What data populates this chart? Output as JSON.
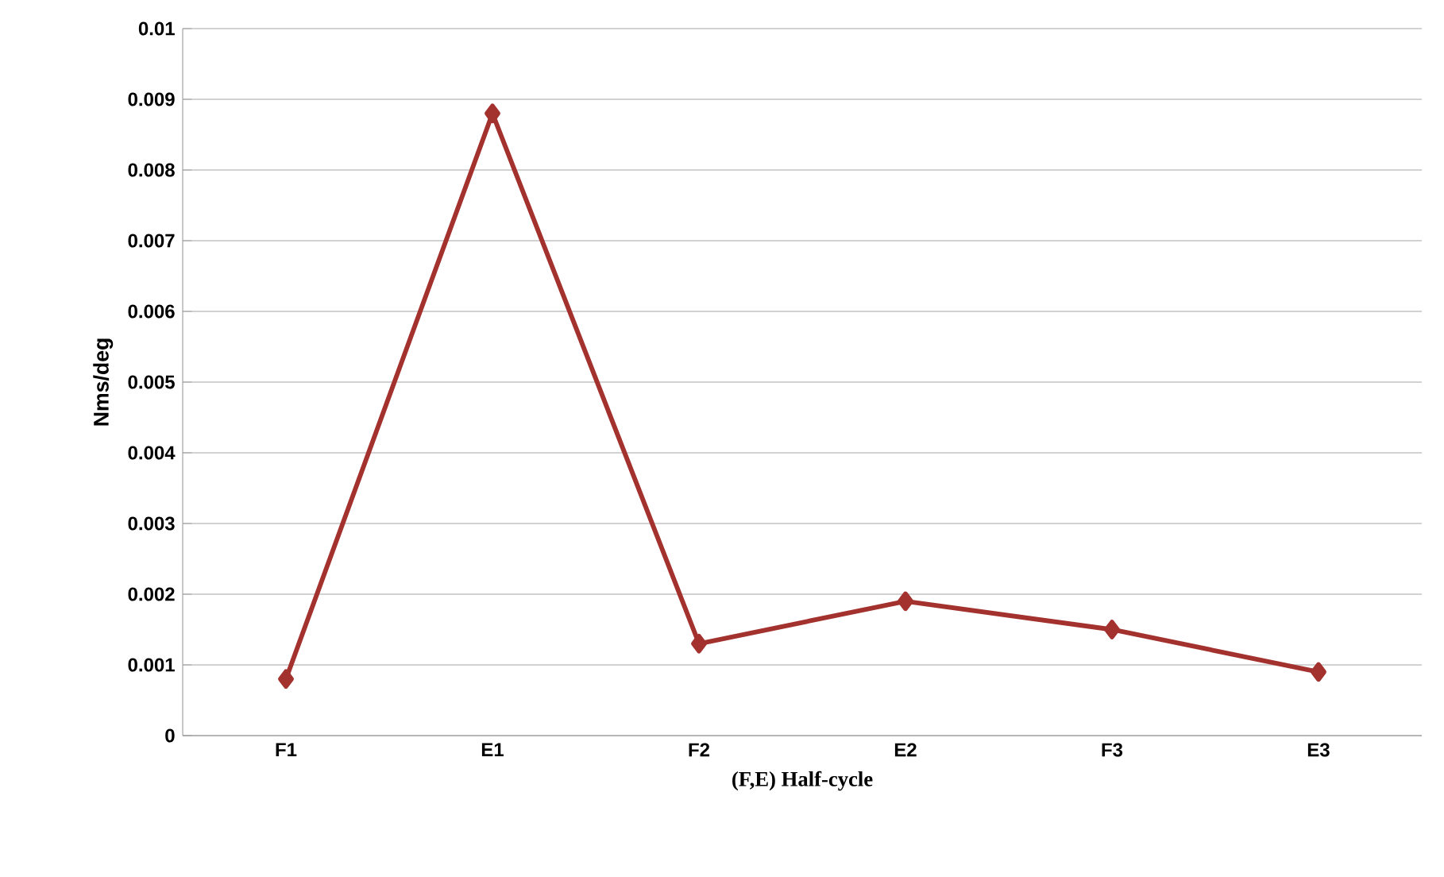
{
  "chart_data": {
    "type": "line",
    "xlabel": "(F,E)  Half-cycle",
    "ylabel": "Nms/deg",
    "categories": [
      "F1",
      "E1",
      "F2",
      "E2",
      "F3",
      "E3"
    ],
    "series": [
      {
        "color": "#a3322e",
        "values": [
          0.0008,
          0.0088,
          0.0013,
          0.0019,
          0.0015,
          0.0009
        ]
      }
    ],
    "ylim": [
      0,
      0.01
    ],
    "yticks": [
      0,
      0.001,
      0.002,
      0.003,
      0.004,
      0.005,
      0.006,
      0.007,
      0.008,
      0.009,
      0.01
    ],
    "grid": "y",
    "marker": "diamond",
    "line_style": "solid"
  }
}
